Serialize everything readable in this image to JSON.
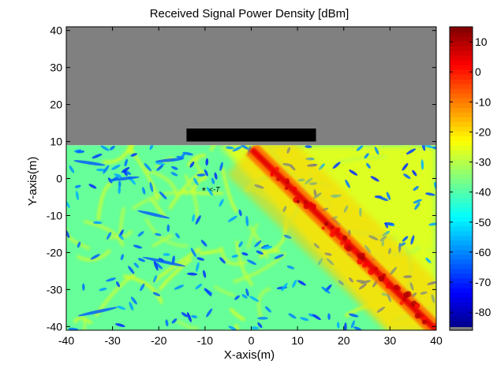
{
  "chart_data": {
    "type": "heatmap",
    "title": "Received Signal Power Density [dBm]",
    "xlabel": "X-axis(m)",
    "ylabel": "Y-axis(m)",
    "xlim": [
      -40,
      40
    ],
    "ylim": [
      -41,
      41
    ],
    "x_ticks": [
      "-40",
      "-30",
      "-20",
      "-10",
      "0",
      "10",
      "20",
      "30",
      "40"
    ],
    "y_ticks": [
      "40",
      "30",
      "20",
      "10",
      "0",
      "-10",
      "-20",
      "-30",
      "-40"
    ],
    "colorbar": {
      "range": [
        -86,
        15
      ],
      "ticks": [
        "10",
        "0",
        "-10",
        "-20",
        "-30",
        "-40",
        "-50",
        "-60",
        "-70",
        "-80"
      ],
      "colormap": "jet"
    },
    "regions": {
      "unsimulated": {
        "x": [
          -40,
          40
        ],
        "y": [
          9,
          41
        ],
        "color": "#808080"
      },
      "obstacle": {
        "x": [
          -14,
          14
        ],
        "y": [
          10,
          13.5
        ],
        "color": "#000000"
      },
      "field": {
        "x": [
          -40,
          40
        ],
        "y": [
          -41,
          9
        ]
      }
    },
    "main_beam": {
      "from": [
        0,
        8
      ],
      "to": [
        40,
        -41
      ],
      "peak_dbm": 10
    },
    "field_levels": {
      "left_background_dbm": -38,
      "right_background_dbm": -25,
      "null_dbm": -70
    },
    "transmitter": {
      "x": -10,
      "y": -3,
      "label": "<-T"
    }
  }
}
